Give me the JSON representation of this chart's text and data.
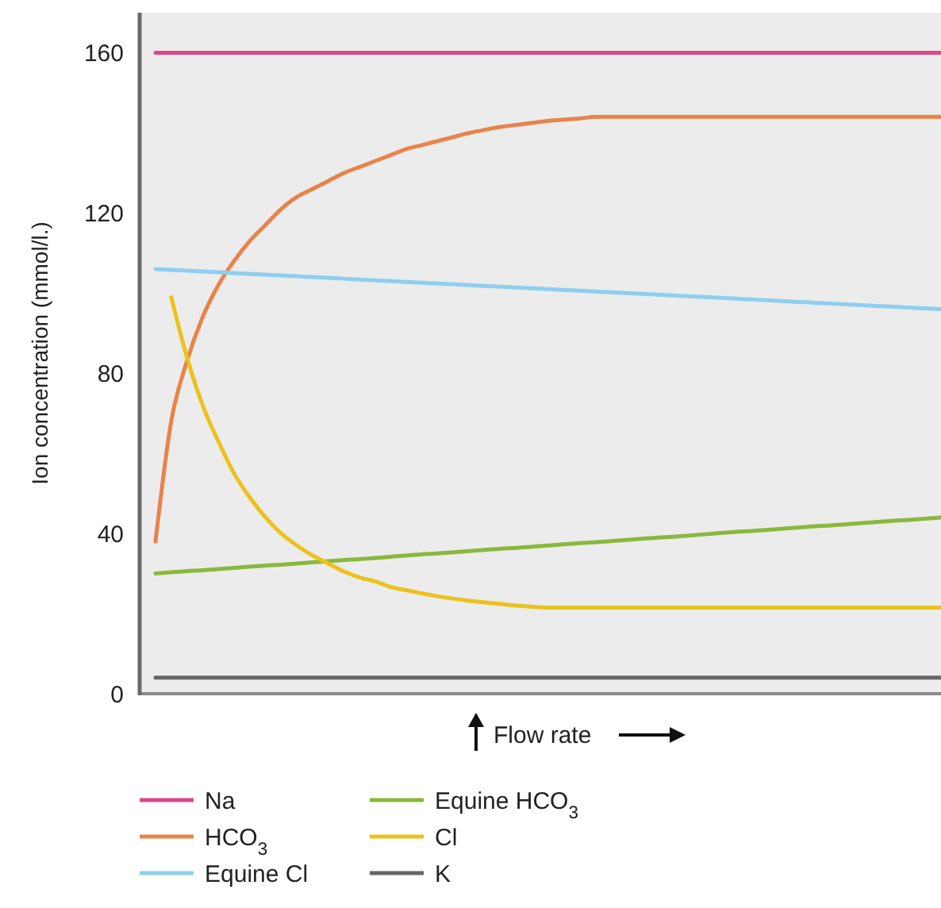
{
  "chart_data": {
    "type": "line",
    "xlabel": "Flow rate",
    "ylabel": "Ion concentration (mmol/l.)",
    "categories": [
      null,
      null,
      null,
      null,
      null,
      null,
      null,
      null,
      null,
      null,
      null,
      null,
      null,
      null,
      null,
      null,
      null,
      null,
      null,
      null,
      null,
      null,
      null,
      null,
      null,
      null,
      null,
      null,
      null,
      null,
      null,
      null,
      null,
      null,
      null,
      null,
      null,
      null,
      null,
      null,
      null,
      null,
      null,
      null,
      null,
      null,
      null,
      null,
      null,
      null,
      null
    ],
    "ylim": [
      0,
      170
    ],
    "yticks": [
      0,
      40,
      80,
      120,
      160
    ],
    "grid": false,
    "legend": "bottom",
    "marker": "none",
    "line_style": "solid",
    "series": [
      {
        "name": "Na",
        "color": "#d9498a",
        "values": [
          160,
          160,
          160,
          160,
          160,
          160,
          160,
          160,
          160,
          160,
          160,
          160,
          160,
          160,
          160,
          160,
          160,
          160,
          160,
          160,
          160,
          160,
          160,
          160,
          160,
          160,
          160,
          160,
          160,
          160,
          160,
          160,
          160,
          160,
          160,
          160,
          160,
          160,
          160,
          160,
          160,
          160,
          160,
          160,
          160,
          160,
          160,
          160,
          160,
          160,
          160
        ]
      },
      {
        "name": "HCO$_{3}$",
        "color": "#e8834a",
        "values": [
          38,
          68,
          83,
          94,
          102,
          108,
          113,
          117,
          121,
          124,
          126,
          128,
          130,
          131.5,
          133,
          134.5,
          136,
          137,
          138,
          139,
          140,
          140.8,
          141.5,
          142,
          142.5,
          143,
          143.3,
          143.6,
          144,
          144,
          144,
          144,
          144,
          144,
          144,
          144,
          144,
          144,
          144,
          144,
          144,
          144,
          144,
          144,
          144,
          144,
          144,
          144,
          144,
          144,
          144
        ]
      },
      {
        "name": "Equine Cl",
        "color": "#8ecfef",
        "values": [
          106,
          105.8,
          105.6,
          105.4,
          105.2,
          105,
          104.8,
          104.6,
          104.4,
          104.2,
          104,
          103.8,
          103.6,
          103.4,
          103.2,
          103,
          102.8,
          102.6,
          102.4,
          102.2,
          102,
          101.8,
          101.6,
          101.4,
          101.2,
          101,
          100.8,
          100.6,
          100.4,
          100.2,
          100,
          99.8,
          99.6,
          99.4,
          99.2,
          99,
          98.8,
          98.6,
          98.4,
          98.2,
          98,
          97.8,
          97.6,
          97.4,
          97.2,
          97,
          96.8,
          96.6,
          96.4,
          96.2,
          96
        ]
      },
      {
        "name": "Equine HCO$_{3}$",
        "color": "#8ab83a",
        "values": [
          30,
          30.3,
          30.6,
          30.8,
          31.1,
          31.4,
          31.7,
          32,
          32.2,
          32.5,
          32.8,
          33.1,
          33.4,
          33.6,
          33.9,
          34.2,
          34.5,
          34.8,
          35,
          35.3,
          35.6,
          35.9,
          36.2,
          36.4,
          36.7,
          37,
          37.3,
          37.6,
          37.8,
          38.1,
          38.4,
          38.7,
          39,
          39.2,
          39.5,
          39.8,
          40.1,
          40.4,
          40.6,
          40.9,
          41.2,
          41.5,
          41.8,
          42,
          42.3,
          42.6,
          42.9,
          43.2,
          43.4,
          43.7,
          44
        ]
      },
      {
        "name": "Cl",
        "color": "#ecc11c",
        "values": [
          null,
          99,
          84,
          72,
          63,
          55,
          49,
          44,
          40,
          37,
          34.5,
          32.5,
          30.5,
          29,
          28,
          26.6,
          25.8,
          25,
          24.3,
          23.7,
          23.2,
          22.8,
          22.4,
          22,
          21.7,
          21.5,
          21.5,
          21.5,
          21.5,
          21.5,
          21.5,
          21.5,
          21.5,
          21.5,
          21.5,
          21.5,
          21.5,
          21.5,
          21.5,
          21.5,
          21.5,
          21.5,
          21.5,
          21.5,
          21.5,
          21.5,
          21.5,
          21.5,
          21.5,
          21.5,
          21.5
        ]
      },
      {
        "name": "K",
        "color": "#666666",
        "values": [
          4,
          4,
          4,
          4,
          4,
          4,
          4,
          4,
          4,
          4,
          4,
          4,
          4,
          4,
          4,
          4,
          4,
          4,
          4,
          4,
          4,
          4,
          4,
          4,
          4,
          4,
          4,
          4,
          4,
          4,
          4,
          4,
          4,
          4,
          4,
          4,
          4,
          4,
          4,
          4,
          4,
          4,
          4,
          4,
          4,
          4,
          4,
          4,
          4,
          4,
          4
        ]
      }
    ]
  }
}
